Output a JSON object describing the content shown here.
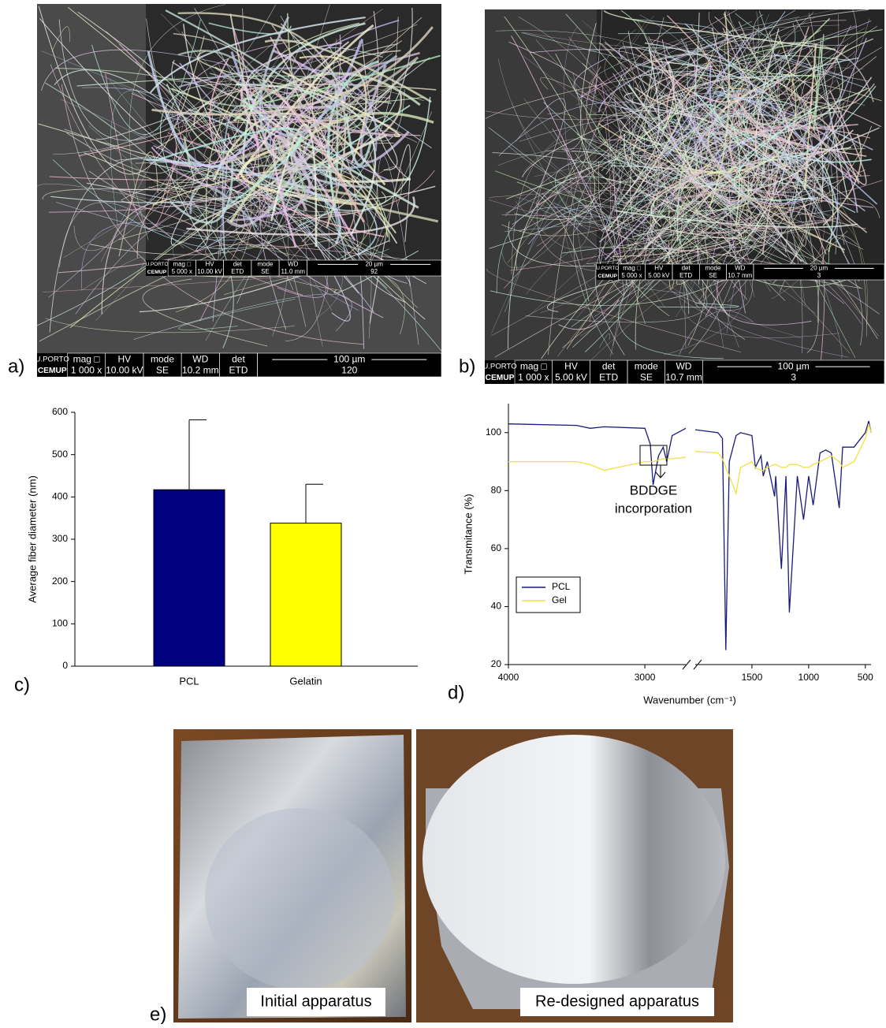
{
  "panels": {
    "labels": [
      "a)",
      "b)",
      "c)",
      "d)",
      "e)"
    ]
  },
  "sem": [
    {
      "logo": [
        "U.PORTO",
        "CEMUP"
      ],
      "info": [
        {
          "header": "mag □",
          "value": "1 000 x"
        },
        {
          "header": "HV",
          "value": "10.00 kV"
        },
        {
          "header": "mode",
          "value": "SE"
        },
        {
          "header": "WD",
          "value": "10.2 mm"
        },
        {
          "header": "det",
          "value": "ETD"
        }
      ],
      "scale": "100 µm",
      "label": "120"
    },
    {
      "logo": [
        "U.PORTO",
        "CEMUP"
      ],
      "info": [
        {
          "header": "mag □",
          "value": "5 000 x"
        },
        {
          "header": "HV",
          "value": "10.00 kV"
        },
        {
          "header": "det",
          "value": "ETD"
        },
        {
          "header": "mode",
          "value": "SE"
        },
        {
          "header": "WD",
          "value": "11.0 mm"
        }
      ],
      "scale": "20 µm",
      "label": "92"
    },
    {
      "logo": [
        "U.PORTO",
        "CEMUP"
      ],
      "info": [
        {
          "header": "mag □",
          "value": "1 000 x"
        },
        {
          "header": "HV",
          "value": "5.00 kV"
        },
        {
          "header": "det",
          "value": "ETD"
        },
        {
          "header": "mode",
          "value": "SE"
        },
        {
          "header": "WD",
          "value": "10.7 mm"
        }
      ],
      "scale": "100 µm",
      "label": "3"
    },
    {
      "logo": [
        "U.PORTO",
        "CEMUP"
      ],
      "info": [
        {
          "header": "mag □",
          "value": "5 000 x"
        },
        {
          "header": "HV",
          "value": "5.00 kV"
        },
        {
          "header": "det",
          "value": "ETD"
        },
        {
          "header": "mode",
          "value": "SE"
        },
        {
          "header": "WD",
          "value": "10.7 mm"
        }
      ],
      "scale": "20 µm",
      "label": "3"
    }
  ],
  "chart_data": [
    {
      "type": "bar",
      "ylabel": "Average fiber diameter (nm)",
      "categories": [
        "PCL",
        "Gelatin"
      ],
      "values": [
        417,
        338
      ],
      "errors": [
        165,
        92
      ],
      "colors": [
        "#000080",
        "#ffff00"
      ],
      "ylim": [
        0,
        600
      ],
      "yticks": [
        0,
        100,
        200,
        300,
        400,
        500,
        600
      ]
    },
    {
      "type": "line",
      "ylabel": "Transmitance (%)",
      "xlabel": "Wavenumber (cm⁻¹)",
      "xlim": [
        4000,
        450
      ],
      "xbreak": [
        2700,
        2000
      ],
      "ylim": [
        20,
        110
      ],
      "yticks": [
        20,
        40,
        60,
        80,
        100
      ],
      "xticks": [
        4000,
        3000,
        1500,
        1000,
        500
      ],
      "legend": "lower left",
      "annotation": [
        "BDDGE",
        "incorporation"
      ],
      "x": [
        4000,
        3500,
        3400,
        3300,
        3000,
        2960,
        2940,
        2900,
        2865,
        2840,
        2800,
        2700,
        2350,
        2000,
        1800,
        1760,
        1730,
        1700,
        1640,
        1600,
        1500,
        1470,
        1420,
        1400,
        1365,
        1300,
        1290,
        1240,
        1200,
        1170,
        1100,
        1045,
        1000,
        960,
        900,
        850,
        800,
        730,
        700,
        600,
        500,
        470,
        450
      ],
      "series": [
        {
          "name": "PCL",
          "color": "#1a1a7a",
          "values": [
            103,
            102.5,
            101.5,
            102,
            101.5,
            96,
            82,
            92,
            95,
            90,
            99,
            101.5,
            null,
            101,
            100,
            98,
            25,
            90,
            99,
            100,
            99,
            88,
            92,
            85,
            90,
            78,
            85,
            53,
            85,
            38,
            85,
            70,
            85,
            75,
            93,
            94,
            93,
            74,
            95,
            95,
            100,
            104,
            100
          ]
        },
        {
          "name": "Gel",
          "color": "#f0e040",
          "values": [
            90,
            90,
            89,
            87,
            90,
            90,
            90,
            90.5,
            91,
            91,
            91,
            91.5,
            null,
            93.5,
            93,
            91,
            88,
            85,
            79,
            88,
            90,
            88,
            87,
            87,
            88,
            89,
            89,
            88,
            88,
            89,
            89,
            88,
            88,
            89,
            90,
            91,
            92,
            90,
            88,
            90,
            98,
            103,
            100
          ]
        }
      ]
    }
  ],
  "photos": {
    "captions": [
      "Initial apparatus",
      "Re-designed apparatus"
    ]
  }
}
